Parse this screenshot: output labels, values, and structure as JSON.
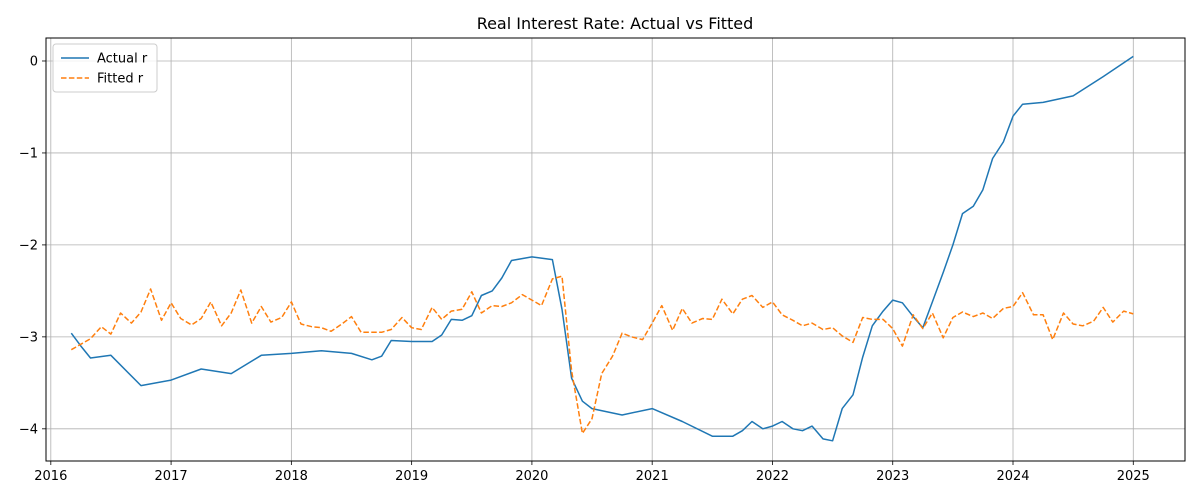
{
  "chart_data": {
    "type": "line",
    "title": "Real Interest Rate: Actual vs Fitted",
    "xlabel": "",
    "ylabel": "",
    "xlim": [
      2015.96,
      2025.43
    ],
    "ylim": [
      -4.35,
      0.25
    ],
    "x_ticks": [
      2016,
      2017,
      2018,
      2019,
      2020,
      2021,
      2022,
      2023,
      2024,
      2025
    ],
    "y_ticks": [
      0,
      -1,
      -2,
      -3,
      -4
    ],
    "y_tick_labels": [
      "0",
      "−1",
      "−2",
      "−3",
      "−4"
    ],
    "grid": true,
    "legend_position": "top-left",
    "series": [
      {
        "name": "Actual r",
        "color": "#1f77b4",
        "style": "solid",
        "x": [
          2016.17,
          2016.25,
          2016.33,
          2016.5,
          2016.75,
          2017.0,
          2017.25,
          2017.5,
          2017.75,
          2018.0,
          2018.25,
          2018.5,
          2018.67,
          2018.75,
          2018.83,
          2019.0,
          2019.17,
          2019.25,
          2019.33,
          2019.42,
          2019.5,
          2019.58,
          2019.67,
          2019.75,
          2019.83,
          2020.0,
          2020.17,
          2020.25,
          2020.33,
          2020.42,
          2020.5,
          2020.75,
          2021.0,
          2021.25,
          2021.5,
          2021.67,
          2021.75,
          2021.83,
          2021.92,
          2022.0,
          2022.08,
          2022.17,
          2022.25,
          2022.33,
          2022.42,
          2022.5,
          2022.58,
          2022.67,
          2022.75,
          2022.83,
          2022.92,
          2023.0,
          2023.08,
          2023.17,
          2023.25,
          2023.33,
          2023.42,
          2023.5,
          2023.58,
          2023.67,
          2023.75,
          2023.83,
          2023.92,
          2024.0,
          2024.08,
          2024.25,
          2024.5,
          2024.75,
          2025.0
        ],
        "y": [
          -2.96,
          -3.1,
          -3.23,
          -3.2,
          -3.53,
          -3.47,
          -3.35,
          -3.4,
          -3.2,
          -3.18,
          -3.15,
          -3.18,
          -3.25,
          -3.21,
          -3.04,
          -3.05,
          -3.05,
          -2.98,
          -2.81,
          -2.82,
          -2.77,
          -2.55,
          -2.5,
          -2.36,
          -2.17,
          -2.13,
          -2.16,
          -2.7,
          -3.45,
          -3.7,
          -3.78,
          -3.85,
          -3.78,
          -3.92,
          -4.08,
          -4.08,
          -4.02,
          -3.92,
          -4.0,
          -3.97,
          -3.92,
          -4.0,
          -4.02,
          -3.97,
          -4.11,
          -4.13,
          -3.78,
          -3.63,
          -3.22,
          -2.88,
          -2.72,
          -2.6,
          -2.63,
          -2.78,
          -2.9,
          -2.62,
          -2.3,
          -2.0,
          -1.66,
          -1.58,
          -1.4,
          -1.06,
          -0.88,
          -0.6,
          -0.47,
          -0.45,
          -0.38,
          -0.17,
          0.05
        ]
      },
      {
        "name": "Fitted r",
        "color": "#ff7f0e",
        "style": "dashed",
        "x": [
          2016.17,
          2016.25,
          2016.33,
          2016.42,
          2016.5,
          2016.58,
          2016.67,
          2016.75,
          2016.83,
          2016.92,
          2017.0,
          2017.08,
          2017.17,
          2017.25,
          2017.33,
          2017.42,
          2017.5,
          2017.58,
          2017.67,
          2017.75,
          2017.83,
          2017.92,
          2018.0,
          2018.08,
          2018.17,
          2018.25,
          2018.33,
          2018.42,
          2018.5,
          2018.58,
          2018.67,
          2018.75,
          2018.83,
          2018.92,
          2019.0,
          2019.08,
          2019.17,
          2019.25,
          2019.33,
          2019.42,
          2019.5,
          2019.58,
          2019.67,
          2019.75,
          2019.83,
          2019.92,
          2020.0,
          2020.08,
          2020.17,
          2020.25,
          2020.33,
          2020.42,
          2020.5,
          2020.58,
          2020.67,
          2020.75,
          2020.83,
          2020.92,
          2021.0,
          2021.08,
          2021.17,
          2021.25,
          2021.33,
          2021.42,
          2021.5,
          2021.58,
          2021.67,
          2021.75,
          2021.83,
          2021.92,
          2022.0,
          2022.08,
          2022.17,
          2022.25,
          2022.33,
          2022.42,
          2022.5,
          2022.58,
          2022.67,
          2022.75,
          2022.83,
          2022.92,
          2023.0,
          2023.08,
          2023.17,
          2023.25,
          2023.33,
          2023.42,
          2023.5,
          2023.58,
          2023.67,
          2023.75,
          2023.83,
          2023.92,
          2024.0,
          2024.08,
          2024.17,
          2024.25,
          2024.33,
          2024.42,
          2024.5,
          2024.58,
          2024.67,
          2024.75,
          2024.83,
          2024.92,
          2025.0
        ],
        "y": [
          -3.14,
          -3.08,
          -3.02,
          -2.89,
          -2.97,
          -2.74,
          -2.85,
          -2.73,
          -2.48,
          -2.82,
          -2.63,
          -2.8,
          -2.87,
          -2.8,
          -2.62,
          -2.88,
          -2.74,
          -2.49,
          -2.85,
          -2.67,
          -2.84,
          -2.79,
          -2.62,
          -2.86,
          -2.89,
          -2.9,
          -2.94,
          -2.86,
          -2.78,
          -2.95,
          -2.95,
          -2.95,
          -2.92,
          -2.79,
          -2.9,
          -2.92,
          -2.68,
          -2.81,
          -2.72,
          -2.7,
          -2.51,
          -2.74,
          -2.66,
          -2.67,
          -2.63,
          -2.54,
          -2.6,
          -2.66,
          -2.37,
          -2.34,
          -3.37,
          -4.05,
          -3.89,
          -3.4,
          -3.21,
          -2.96,
          -3.0,
          -3.03,
          -2.85,
          -2.66,
          -2.93,
          -2.69,
          -2.85,
          -2.8,
          -2.81,
          -2.59,
          -2.75,
          -2.59,
          -2.55,
          -2.68,
          -2.62,
          -2.76,
          -2.82,
          -2.88,
          -2.85,
          -2.92,
          -2.9,
          -2.99,
          -3.06,
          -2.79,
          -2.81,
          -2.81,
          -2.91,
          -3.1,
          -2.76,
          -2.91,
          -2.74,
          -3.01,
          -2.79,
          -2.73,
          -2.78,
          -2.74,
          -2.8,
          -2.69,
          -2.67,
          -2.52,
          -2.76,
          -2.76,
          -3.03,
          -2.74,
          -2.86,
          -2.88,
          -2.83,
          -2.68,
          -2.84,
          -2.72,
          -2.75
        ]
      }
    ]
  }
}
